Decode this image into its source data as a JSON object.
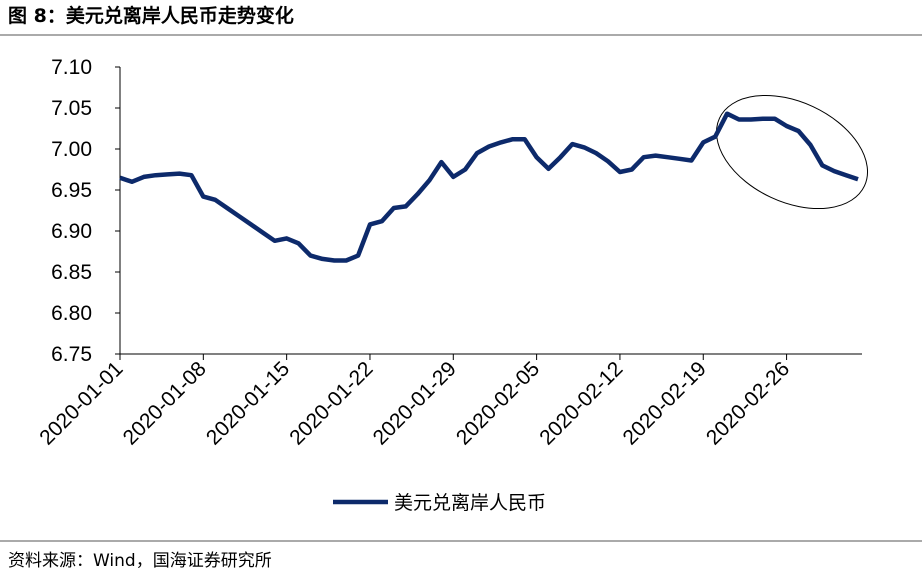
{
  "chart_data": {
    "type": "line",
    "title": "图 8：美元兑离岸人民币走势变化",
    "source": "资料来源：Wind，国海证券研究所",
    "x": [
      "2020-01-01",
      "2020-01-02",
      "2020-01-03",
      "2020-01-04",
      "2020-01-05",
      "2020-01-06",
      "2020-01-07",
      "2020-01-08",
      "2020-01-09",
      "2020-01-10",
      "2020-01-11",
      "2020-01-12",
      "2020-01-13",
      "2020-01-14",
      "2020-01-15",
      "2020-01-16",
      "2020-01-17",
      "2020-01-18",
      "2020-01-19",
      "2020-01-20",
      "2020-01-21",
      "2020-01-22",
      "2020-01-23",
      "2020-01-24",
      "2020-01-25",
      "2020-01-26",
      "2020-01-27",
      "2020-01-28",
      "2020-01-29",
      "2020-01-30",
      "2020-01-31",
      "2020-02-01",
      "2020-02-02",
      "2020-02-03",
      "2020-02-04",
      "2020-02-05",
      "2020-02-06",
      "2020-02-07",
      "2020-02-08",
      "2020-02-09",
      "2020-02-10",
      "2020-02-11",
      "2020-02-12",
      "2020-02-13",
      "2020-02-14",
      "2020-02-15",
      "2020-02-16",
      "2020-02-17",
      "2020-02-18",
      "2020-02-19",
      "2020-02-20",
      "2020-02-21",
      "2020-02-22",
      "2020-02-23",
      "2020-02-24",
      "2020-02-25",
      "2020-02-26",
      "2020-02-27",
      "2020-02-28",
      "2020-02-29",
      "2020-03-01",
      "2020-03-02",
      "2020-03-03"
    ],
    "series": [
      {
        "name": "美元兑离岸人民币",
        "color": "#0d2a6b",
        "values": [
          6.965,
          6.96,
          6.966,
          6.968,
          6.969,
          6.97,
          6.968,
          6.942,
          6.938,
          6.928,
          6.918,
          6.908,
          6.898,
          6.888,
          6.891,
          6.885,
          6.87,
          6.866,
          6.864,
          6.864,
          6.87,
          6.908,
          6.912,
          6.928,
          6.93,
          6.945,
          6.962,
          6.984,
          6.966,
          6.975,
          6.995,
          7.003,
          7.008,
          7.012,
          7.012,
          6.99,
          6.976,
          6.99,
          7.006,
          7.002,
          6.995,
          6.985,
          6.972,
          6.975,
          6.99,
          6.992,
          6.99,
          6.988,
          6.986,
          7.008,
          7.015,
          7.043,
          7.036,
          7.036,
          7.037,
          7.037,
          7.028,
          7.022,
          7.005,
          6.98,
          6.973,
          6.968,
          6.963
        ]
      }
    ],
    "xlim": [
      "2020-01-01",
      "2020-03-03"
    ],
    "xticks": [
      "2020-01-01",
      "2020-01-08",
      "2020-01-15",
      "2020-01-22",
      "2020-01-29",
      "2020-02-05",
      "2020-02-12",
      "2020-02-19",
      "2020-02-26"
    ],
    "ylim": [
      6.75,
      7.1
    ],
    "yticks": [
      6.75,
      {
        "value": 6.8,
        "label": "6.80"
      },
      6.85,
      {
        "value": 6.9,
        "label": "6.90"
      },
      6.95,
      {
        "value": 7.0,
        "label": "7.00"
      },
      7.05,
      {
        "value": 7.1,
        "label": "7.10"
      }
    ],
    "legend": "bottom"
  }
}
